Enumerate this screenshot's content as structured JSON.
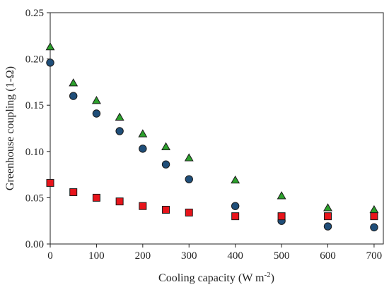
{
  "chart_data": {
    "type": "scatter",
    "xlabel_main": "Cooling capacity (W m",
    "xlabel_sup": "-2",
    "xlabel_tail": ")",
    "ylabel": "Greenhouse coupling (1-Ω)",
    "xlim": [
      0,
      720
    ],
    "ylim": [
      0,
      0.25
    ],
    "xticks": [
      0,
      100,
      200,
      300,
      400,
      500,
      600,
      700
    ],
    "xtick_labels": [
      "0",
      "100",
      "200",
      "300",
      "400",
      "500",
      "600",
      "700"
    ],
    "yticks": [
      0,
      0.05,
      0.1,
      0.15,
      0.2,
      0.25
    ],
    "ytick_labels": [
      "0.00",
      "0.05",
      "0.10",
      "0.15",
      "0.20",
      "0.25"
    ],
    "grid": false,
    "series": [
      {
        "marker": "triangle",
        "color": "#2ca02c",
        "x": [
          0,
          50,
          100,
          150,
          200,
          250,
          300,
          400,
          500,
          600,
          700
        ],
        "y": [
          0.213,
          0.174,
          0.155,
          0.137,
          0.119,
          0.105,
          0.093,
          0.069,
          0.052,
          0.039,
          0.037
        ]
      },
      {
        "marker": "circle",
        "color": "#1f4e79",
        "x": [
          0,
          50,
          100,
          150,
          200,
          250,
          300,
          400,
          500,
          600,
          700
        ],
        "y": [
          0.196,
          0.16,
          0.141,
          0.122,
          0.103,
          0.086,
          0.07,
          0.041,
          0.025,
          0.019,
          0.018
        ]
      },
      {
        "marker": "square",
        "color": "#e8141b",
        "x": [
          0,
          50,
          100,
          150,
          200,
          250,
          300,
          400,
          500,
          600,
          700
        ],
        "y": [
          0.066,
          0.056,
          0.05,
          0.046,
          0.041,
          0.037,
          0.034,
          0.03,
          0.03,
          0.03,
          0.03
        ]
      }
    ]
  }
}
